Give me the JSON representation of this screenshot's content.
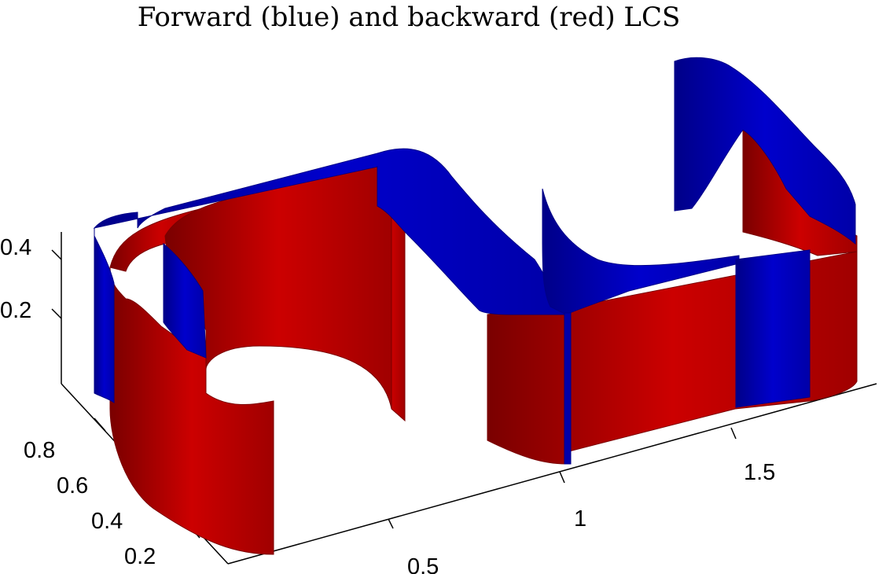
{
  "chart_data": {
    "type": "surface-3d",
    "title": "Forward (blue) and backward (red) LCS",
    "xlabel": "",
    "ylabel": "",
    "zlabel": "",
    "x_ticks": [
      "0.5",
      "1",
      "1.5"
    ],
    "y_ticks": [
      "0.2",
      "0.4",
      "0.6",
      "0.8"
    ],
    "z_ticks": [
      "0.2",
      "0.4"
    ],
    "xlim": [
      0,
      2
    ],
    "ylim": [
      0,
      1
    ],
    "zlim": [
      0,
      0.45
    ],
    "grid": false,
    "series": [
      {
        "name": "Forward",
        "color": "#0000cc"
      },
      {
        "name": "Backward",
        "color": "#cc0000"
      }
    ]
  },
  "colors": {
    "forward": "#0000cc",
    "forward_shade": "#000088",
    "backward": "#cc0000",
    "backward_shade": "#7a0000"
  }
}
